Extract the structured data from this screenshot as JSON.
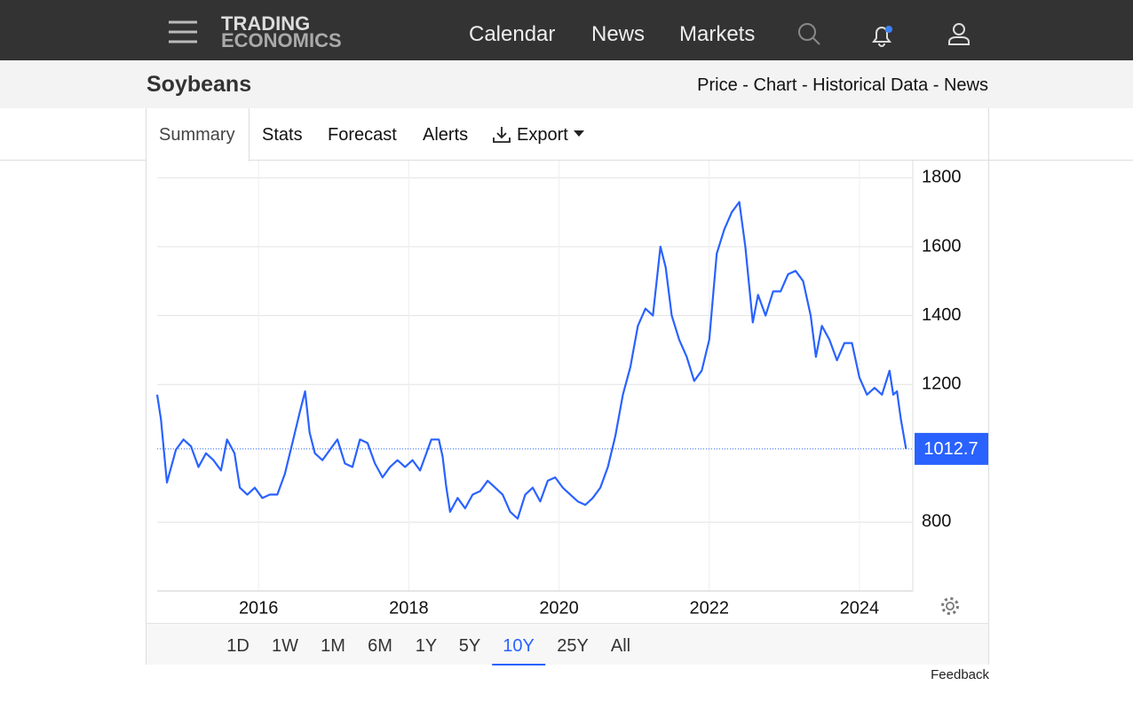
{
  "header": {
    "logo": [
      "TRADING",
      "ECONOMICS"
    ],
    "nav": [
      "Calendar",
      "News",
      "Markets"
    ]
  },
  "subheader": {
    "title": "Soybeans",
    "links": "Price - Chart - Historical Data - News"
  },
  "tabs": [
    "Summary",
    "Stats",
    "Forecast",
    "Alerts",
    "Export"
  ],
  "chart_data": {
    "type": "line",
    "grid": true,
    "xticks": [
      2016,
      2018,
      2020,
      2022,
      2024
    ],
    "xlim": [
      2014.65,
      2024.71
    ],
    "yticks": [
      800,
      1200,
      1400,
      1600,
      1800
    ],
    "ylim": [
      600,
      1850
    ],
    "x": [
      2014.65,
      2014.7,
      2014.78,
      2014.9,
      2015.0,
      2015.1,
      2015.2,
      2015.3,
      2015.4,
      2015.5,
      2015.58,
      2015.68,
      2015.75,
      2015.85,
      2015.95,
      2016.05,
      2016.15,
      2016.25,
      2016.35,
      2016.45,
      2016.55,
      2016.62,
      2016.68,
      2016.75,
      2016.85,
      2016.95,
      2017.05,
      2017.15,
      2017.25,
      2017.35,
      2017.45,
      2017.55,
      2017.65,
      2017.75,
      2017.85,
      2017.95,
      2018.05,
      2018.15,
      2018.3,
      2018.4,
      2018.45,
      2018.5,
      2018.55,
      2018.65,
      2018.75,
      2018.85,
      2018.95,
      2019.05,
      2019.15,
      2019.25,
      2019.35,
      2019.45,
      2019.55,
      2019.65,
      2019.75,
      2019.85,
      2019.95,
      2020.05,
      2020.15,
      2020.25,
      2020.35,
      2020.45,
      2020.55,
      2020.65,
      2020.75,
      2020.85,
      2020.95,
      2021.05,
      2021.15,
      2021.25,
      2021.35,
      2021.42,
      2021.5,
      2021.6,
      2021.7,
      2021.8,
      2021.9,
      2022.0,
      2022.1,
      2022.2,
      2022.3,
      2022.4,
      2022.48,
      2022.58,
      2022.65,
      2022.75,
      2022.85,
      2022.95,
      2023.05,
      2023.15,
      2023.25,
      2023.35,
      2023.42,
      2023.5,
      2023.6,
      2023.7,
      2023.8,
      2023.9,
      2024.0,
      2024.1,
      2024.2,
      2024.3,
      2024.4,
      2024.45,
      2024.5,
      2024.55,
      2024.62
    ],
    "series": [
      {
        "name": "Soybeans",
        "color": "#2962ff",
        "values": [
          1170,
          1100,
          915,
          1010,
          1040,
          1020,
          960,
          1000,
          980,
          950,
          1040,
          1000,
          900,
          880,
          900,
          870,
          880,
          880,
          940,
          1030,
          1120,
          1180,
          1060,
          1000,
          980,
          1010,
          1040,
          970,
          960,
          1040,
          1030,
          970,
          930,
          960,
          980,
          960,
          980,
          950,
          1040,
          1040,
          990,
          900,
          830,
          870,
          840,
          880,
          890,
          920,
          900,
          880,
          830,
          810,
          880,
          900,
          860,
          920,
          930,
          900,
          880,
          860,
          850,
          870,
          900,
          960,
          1050,
          1170,
          1250,
          1370,
          1420,
          1400,
          1600,
          1540,
          1400,
          1330,
          1280,
          1210,
          1240,
          1330,
          1580,
          1650,
          1700,
          1730,
          1600,
          1380,
          1460,
          1400,
          1470,
          1470,
          1520,
          1530,
          1500,
          1400,
          1280,
          1370,
          1330,
          1270,
          1320,
          1320,
          1220,
          1170,
          1190,
          1170,
          1240,
          1170,
          1180,
          1100,
          1012.7
        ]
      }
    ]
  },
  "ranges": {
    "items": [
      "1D",
      "1W",
      "1M",
      "6M",
      "1Y",
      "5Y",
      "10Y",
      "25Y",
      "All"
    ],
    "selected": "10Y"
  },
  "feedback": "Feedback"
}
